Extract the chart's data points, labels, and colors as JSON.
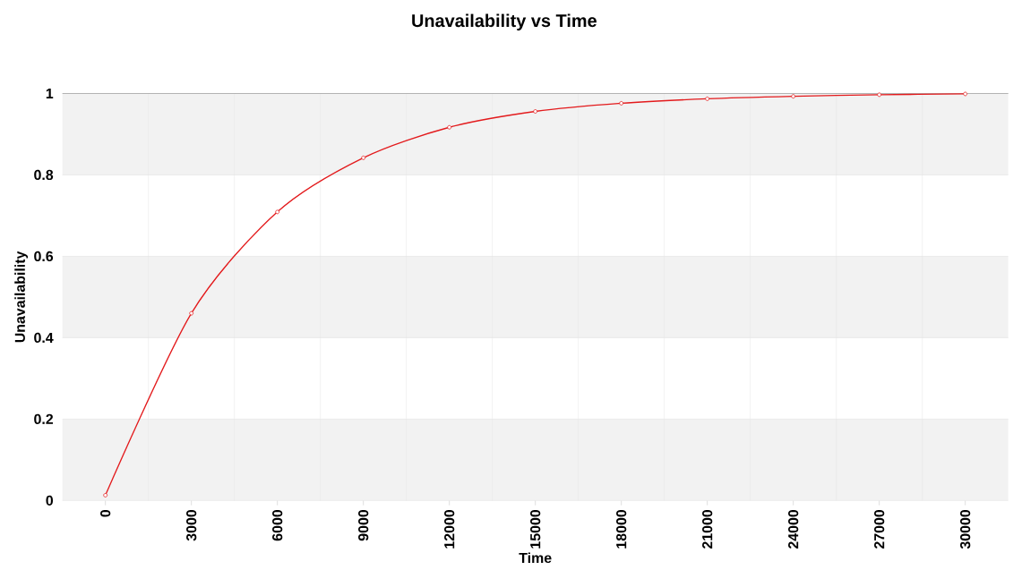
{
  "chart_data": {
    "type": "line",
    "title": "Unavailability vs Time",
    "xlabel": "Time",
    "ylabel": "Unavailability",
    "x": [
      0,
      3000,
      6000,
      9000,
      12000,
      15000,
      18000,
      21000,
      24000,
      27000,
      30000
    ],
    "series": [
      {
        "color": "#e31a1c",
        "values": [
          0.013,
          0.46,
          0.709,
          0.842,
          0.917,
          0.956,
          0.976,
          0.987,
          0.993,
          0.997,
          0.999
        ]
      }
    ],
    "xlim": [
      -1500,
      31500
    ],
    "ylim": [
      0,
      1
    ],
    "xticks": [
      0,
      3000,
      6000,
      9000,
      12000,
      15000,
      18000,
      21000,
      24000,
      27000,
      30000
    ],
    "yticks": [
      0,
      0.2,
      0.4,
      0.6,
      0.8,
      1
    ],
    "grid": true,
    "marker": "circle",
    "line_style": "solid",
    "bands": [
      {
        "axis": "y",
        "from": 0,
        "to": 0.2,
        "color": "#f2f2f2"
      },
      {
        "axis": "y",
        "from": 0.4,
        "to": 0.6,
        "color": "#f2f2f2"
      },
      {
        "axis": "y",
        "from": 0.8,
        "to": 1,
        "color": "#f2f2f2"
      }
    ]
  }
}
